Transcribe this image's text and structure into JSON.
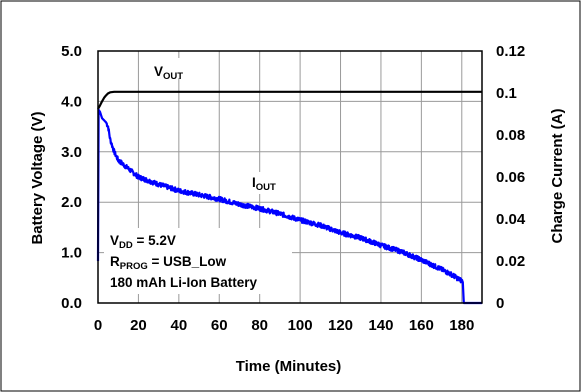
{
  "chart_data": {
    "type": "line",
    "title": "",
    "xlabel": "Time (Minutes)",
    "ylabel_left": "Battery Voltage (V)",
    "ylabel_right": "Charge Current (A)",
    "xlim": [
      0,
      190
    ],
    "ylim_left": [
      0,
      5.0
    ],
    "ylim_right": [
      0,
      0.12
    ],
    "x_ticks": [
      0,
      20,
      40,
      60,
      80,
      100,
      120,
      140,
      160,
      180
    ],
    "x_tick_labels": [
      "0",
      "20",
      "40",
      "60",
      "80",
      "100",
      "120",
      "140",
      "160",
      "180"
    ],
    "y_left_ticks": [
      0,
      1,
      2,
      3,
      4,
      5
    ],
    "y_left_tick_labels": [
      "0.0",
      "1.0",
      "2.0",
      "3.0",
      "4.0",
      "5.0"
    ],
    "y_right_ticks": [
      0,
      0.02,
      0.04,
      0.06,
      0.08,
      0.1,
      0.12
    ],
    "y_right_tick_labels": [
      "0",
      "0.02",
      "0.04",
      "0.06",
      "0.08",
      "0.1",
      "0.12"
    ],
    "grid": true,
    "series": [
      {
        "axis": "left",
        "color": "#000000",
        "x": [
          0,
          1,
          2,
          3,
          4,
          5,
          6,
          8,
          20,
          40,
          60,
          80,
          100,
          120,
          140,
          160,
          180,
          186,
          190
        ],
        "y": [
          3.85,
          3.92,
          4.0,
          4.07,
          4.12,
          4.16,
          4.18,
          4.19,
          4.19,
          4.19,
          4.19,
          4.19,
          4.19,
          4.19,
          4.19,
          4.19,
          4.19,
          4.19,
          4.19
        ]
      },
      {
        "axis": "right",
        "color": "#0000ff",
        "x": [
          0,
          0.3,
          1,
          2,
          3,
          4,
          5,
          6,
          8,
          10,
          15,
          20,
          30,
          40,
          50,
          60,
          70,
          80,
          90,
          100,
          110,
          120,
          130,
          140,
          150,
          160,
          170,
          175,
          180,
          180.5,
          181,
          190
        ],
        "y": [
          0.02,
          0.092,
          0.091,
          0.088,
          0.087,
          0.086,
          0.084,
          0.078,
          0.072,
          0.068,
          0.064,
          0.06,
          0.0565,
          0.0535,
          0.0515,
          0.0495,
          0.047,
          0.045,
          0.0425,
          0.0395,
          0.037,
          0.0335,
          0.031,
          0.0275,
          0.0245,
          0.0205,
          0.016,
          0.0135,
          0.0105,
          0.01,
          0,
          0
        ]
      }
    ],
    "annotations": {
      "vout": {
        "main": "V",
        "sub": "OUT"
      },
      "iout": {
        "main": "I",
        "sub": "OUT"
      },
      "vdd": {
        "main": "V",
        "sub": "DD",
        "rest": " = 5.2V"
      },
      "rprog": {
        "main": "R",
        "sub": "PROG",
        "rest": " = USB_Low"
      },
      "battery": "180 mAh Li-Ion Battery"
    }
  }
}
